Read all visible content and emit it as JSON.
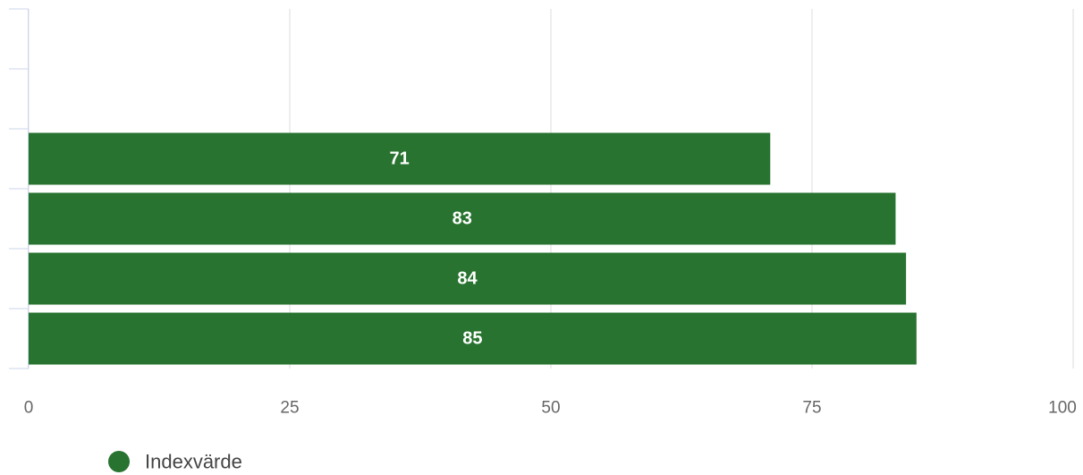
{
  "chart_data": {
    "type": "bar",
    "orientation": "horizontal",
    "categories": [
      "",
      "",
      "",
      "",
      "",
      ""
    ],
    "series": [
      {
        "name": "Indexvärde",
        "color": "#27732f",
        "values": [
          null,
          null,
          71,
          83,
          84,
          85
        ]
      }
    ],
    "xlim": [
      0,
      100
    ],
    "xticks": [
      "0",
      "25",
      "50",
      "75",
      "100"
    ],
    "grid": true,
    "legend_position": "bottom-left",
    "colors": {
      "bar": "#27732f",
      "grid": "#dddddd",
      "axis": "#ccd6eb",
      "bar_label": "#ffffff",
      "tick_label": "#666666"
    }
  }
}
